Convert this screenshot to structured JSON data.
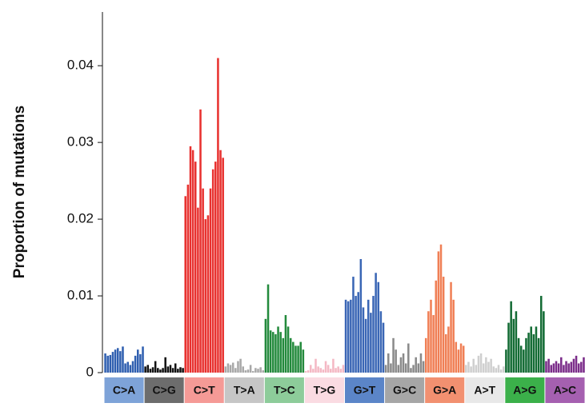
{
  "chart_data": {
    "type": "grouped_bar",
    "y_label": "Proportion of mutations",
    "ylim": [
      0,
      0.047
    ],
    "yticks": [
      0,
      0.01,
      0.02,
      0.03,
      0.04
    ],
    "groups": [
      {
        "name": "C>A",
        "color": "#2f5fb0",
        "label_color": "#7ea3d8",
        "values": [
          0.0025,
          0.0022,
          0.0023,
          0.0027,
          0.003,
          0.0032,
          0.0028,
          0.0034,
          0.0012,
          0.0014,
          0.001,
          0.0015,
          0.0022,
          0.003,
          0.0024,
          0.0034
        ]
      },
      {
        "name": "C>G",
        "color": "#111111",
        "label_color": "#6d6d6d",
        "values": [
          0.0008,
          0.001,
          0.0005,
          0.0007,
          0.0015,
          0.0006,
          0.0004,
          0.0006,
          0.002,
          0.0008,
          0.001,
          0.0006,
          0.0012,
          0.0005,
          0.0007,
          0.0006
        ]
      },
      {
        "name": "C>T",
        "color": "#e8312f",
        "label_color": "#f59a96",
        "values": [
          0.023,
          0.0245,
          0.0295,
          0.029,
          0.0275,
          0.0215,
          0.0343,
          0.024,
          0.02,
          0.0205,
          0.024,
          0.0265,
          0.0275,
          0.041,
          0.029,
          0.028
        ]
      },
      {
        "name": "T>A",
        "color": "#a8a8a8",
        "label_color": "#c6c6c6",
        "values": [
          0.0008,
          0.0012,
          0.001,
          0.0013,
          0.0006,
          0.0015,
          0.0018,
          0.0008,
          0.0003,
          0.0004,
          0.001,
          0.0002,
          0.0006,
          0.0005,
          0.0007,
          0.0003
        ]
      },
      {
        "name": "T>C",
        "color": "#238a3c",
        "label_color": "#8dcc9a",
        "values": [
          0.007,
          0.0115,
          0.0055,
          0.0053,
          0.005,
          0.006,
          0.0053,
          0.0045,
          0.0075,
          0.006,
          0.0045,
          0.004,
          0.0035,
          0.0035,
          0.004,
          0.003
        ]
      },
      {
        "name": "T>G",
        "color": "#f4b8c4",
        "label_color": "#fadbe2",
        "values": [
          0.0002,
          0.0003,
          0.001,
          0.0005,
          0.0018,
          0.0008,
          0.0006,
          0.0004,
          0.0015,
          0.001,
          0.0005,
          0.0018,
          0.0006,
          0.0008,
          0.0005,
          0.001
        ]
      },
      {
        "name": "G>T",
        "color": "#3a66b5",
        "label_color": "#5b85c8",
        "values": [
          0.0095,
          0.0093,
          0.0095,
          0.0125,
          0.01,
          0.0105,
          0.0148,
          0.0085,
          0.007,
          0.0095,
          0.0078,
          0.01,
          0.013,
          0.0118,
          0.008,
          0.0065
        ]
      },
      {
        "name": "G>C",
        "color": "#8a8a8a",
        "label_color": "#a6a6a6",
        "values": [
          0.001,
          0.0025,
          0.0012,
          0.0045,
          0.003,
          0.001,
          0.002,
          0.0025,
          0.0012,
          0.0038,
          0.0006,
          0.001,
          0.002,
          0.0012,
          0.0025,
          0.0015
        ]
      },
      {
        "name": "G>A",
        "color": "#f07f55",
        "label_color": "#f29070",
        "values": [
          0.0045,
          0.008,
          0.0095,
          0.0075,
          0.012,
          0.0158,
          0.0167,
          0.0125,
          0.005,
          0.006,
          0.0118,
          0.0095,
          0.004,
          0.003,
          0.0038,
          0.0035
        ]
      },
      {
        "name": "A>T",
        "color": "#cfcfcf",
        "label_color": "#e8e8e8",
        "values": [
          0.001,
          0.0014,
          0.0008,
          0.0018,
          0.001,
          0.0022,
          0.0025,
          0.0012,
          0.002,
          0.0014,
          0.0018,
          0.0008,
          0.0006,
          0.001,
          0.0004,
          0.0008
        ]
      },
      {
        "name": "A>G",
        "color": "#136b34",
        "label_color": "#3bb04a",
        "values": [
          0.003,
          0.0065,
          0.0093,
          0.007,
          0.008,
          0.0045,
          0.0035,
          0.003,
          0.0045,
          0.0052,
          0.006,
          0.005,
          0.006,
          0.0045,
          0.01,
          0.008
        ]
      },
      {
        "name": "A>C",
        "color": "#7b2d8a",
        "label_color": "#a560b0",
        "values": [
          0.0015,
          0.0018,
          0.001,
          0.0012,
          0.0015,
          0.0012,
          0.002,
          0.001,
          0.0015,
          0.0012,
          0.0014,
          0.0018,
          0.0022,
          0.0012,
          0.0014,
          0.002
        ]
      }
    ]
  }
}
